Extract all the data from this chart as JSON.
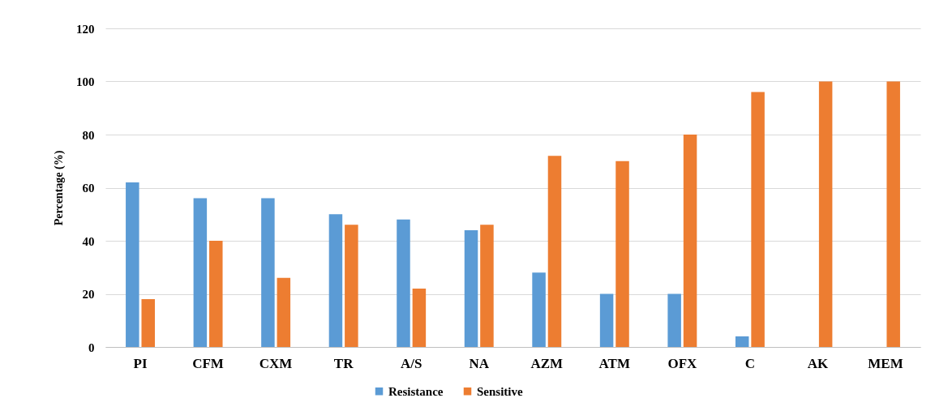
{
  "chart_data": {
    "type": "bar",
    "ylabel": "Percentage (%)",
    "categories": [
      "PI",
      "CFM",
      "CXM",
      "TR",
      "A/S",
      "NA",
      "AZM",
      "ATM",
      "OFX",
      "C",
      "AK",
      "MEM"
    ],
    "series": [
      {
        "name": "Resistance",
        "color": "#5b9bd5",
        "values": [
          62,
          56,
          56,
          50,
          48,
          44,
          28,
          20,
          20,
          4,
          0,
          0
        ]
      },
      {
        "name": "Sensitive",
        "color": "#ed7d31",
        "values": [
          18,
          40,
          26,
          46,
          22,
          46,
          72,
          70,
          80,
          96,
          100,
          100
        ]
      }
    ],
    "ylim": [
      0,
      120
    ],
    "yticks": [
      0,
      20,
      40,
      60,
      80,
      100,
      120
    ],
    "grid": "y",
    "legend": "bottom"
  }
}
